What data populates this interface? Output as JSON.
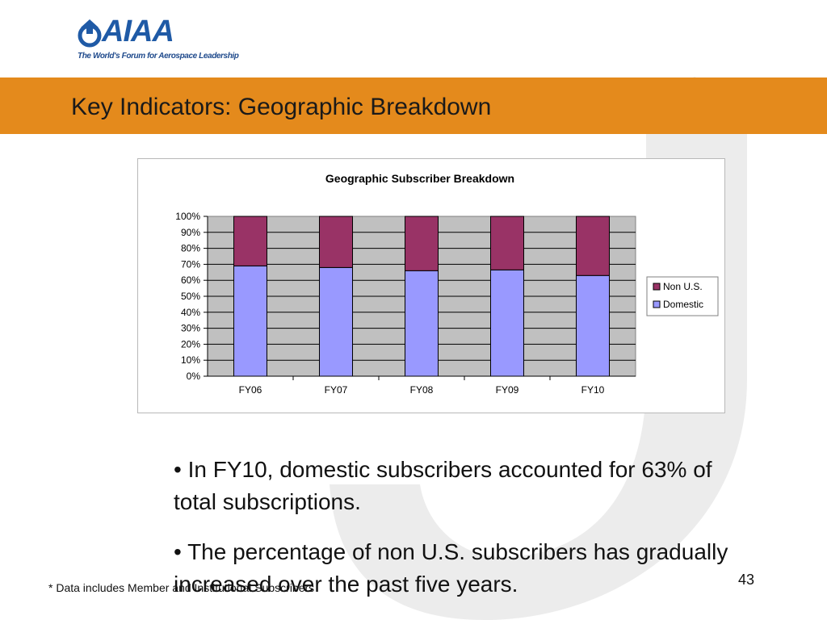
{
  "logo": {
    "wordmark": "AIAA",
    "tagline": "The World's Forum for Aerospace Leadership"
  },
  "slide": {
    "title": "Key Indicators:  Geographic Breakdown",
    "bullets": [
      "•  In FY10, domestic subscribers accounted for 63% of total subscriptions.",
      "•  The percentage of non U.S. subscribers has gradually increased over the past five years."
    ],
    "footnote": "* Data includes Member and Institutional Subscribers",
    "page_number": "43"
  },
  "colors": {
    "domestic": "#9999ff",
    "non_us": "#993366",
    "plot_bg": "#c0c0c0",
    "title_band": "#e48a1c"
  },
  "chart_data": {
    "type": "bar",
    "stacked": true,
    "title": "Geographic Subscriber Breakdown",
    "categories": [
      "FY06",
      "FY07",
      "FY08",
      "FY09",
      "FY10"
    ],
    "series": [
      {
        "name": "Domestic",
        "values": [
          69,
          68,
          66,
          66.5,
          63
        ]
      },
      {
        "name": "Non U.S.",
        "values": [
          31,
          32,
          34,
          33.5,
          37
        ]
      }
    ],
    "yticks": [
      "0%",
      "10%",
      "20%",
      "30%",
      "40%",
      "50%",
      "60%",
      "70%",
      "80%",
      "90%",
      "100%"
    ],
    "ylim": [
      0,
      100
    ],
    "grid": true,
    "legend": "right"
  }
}
